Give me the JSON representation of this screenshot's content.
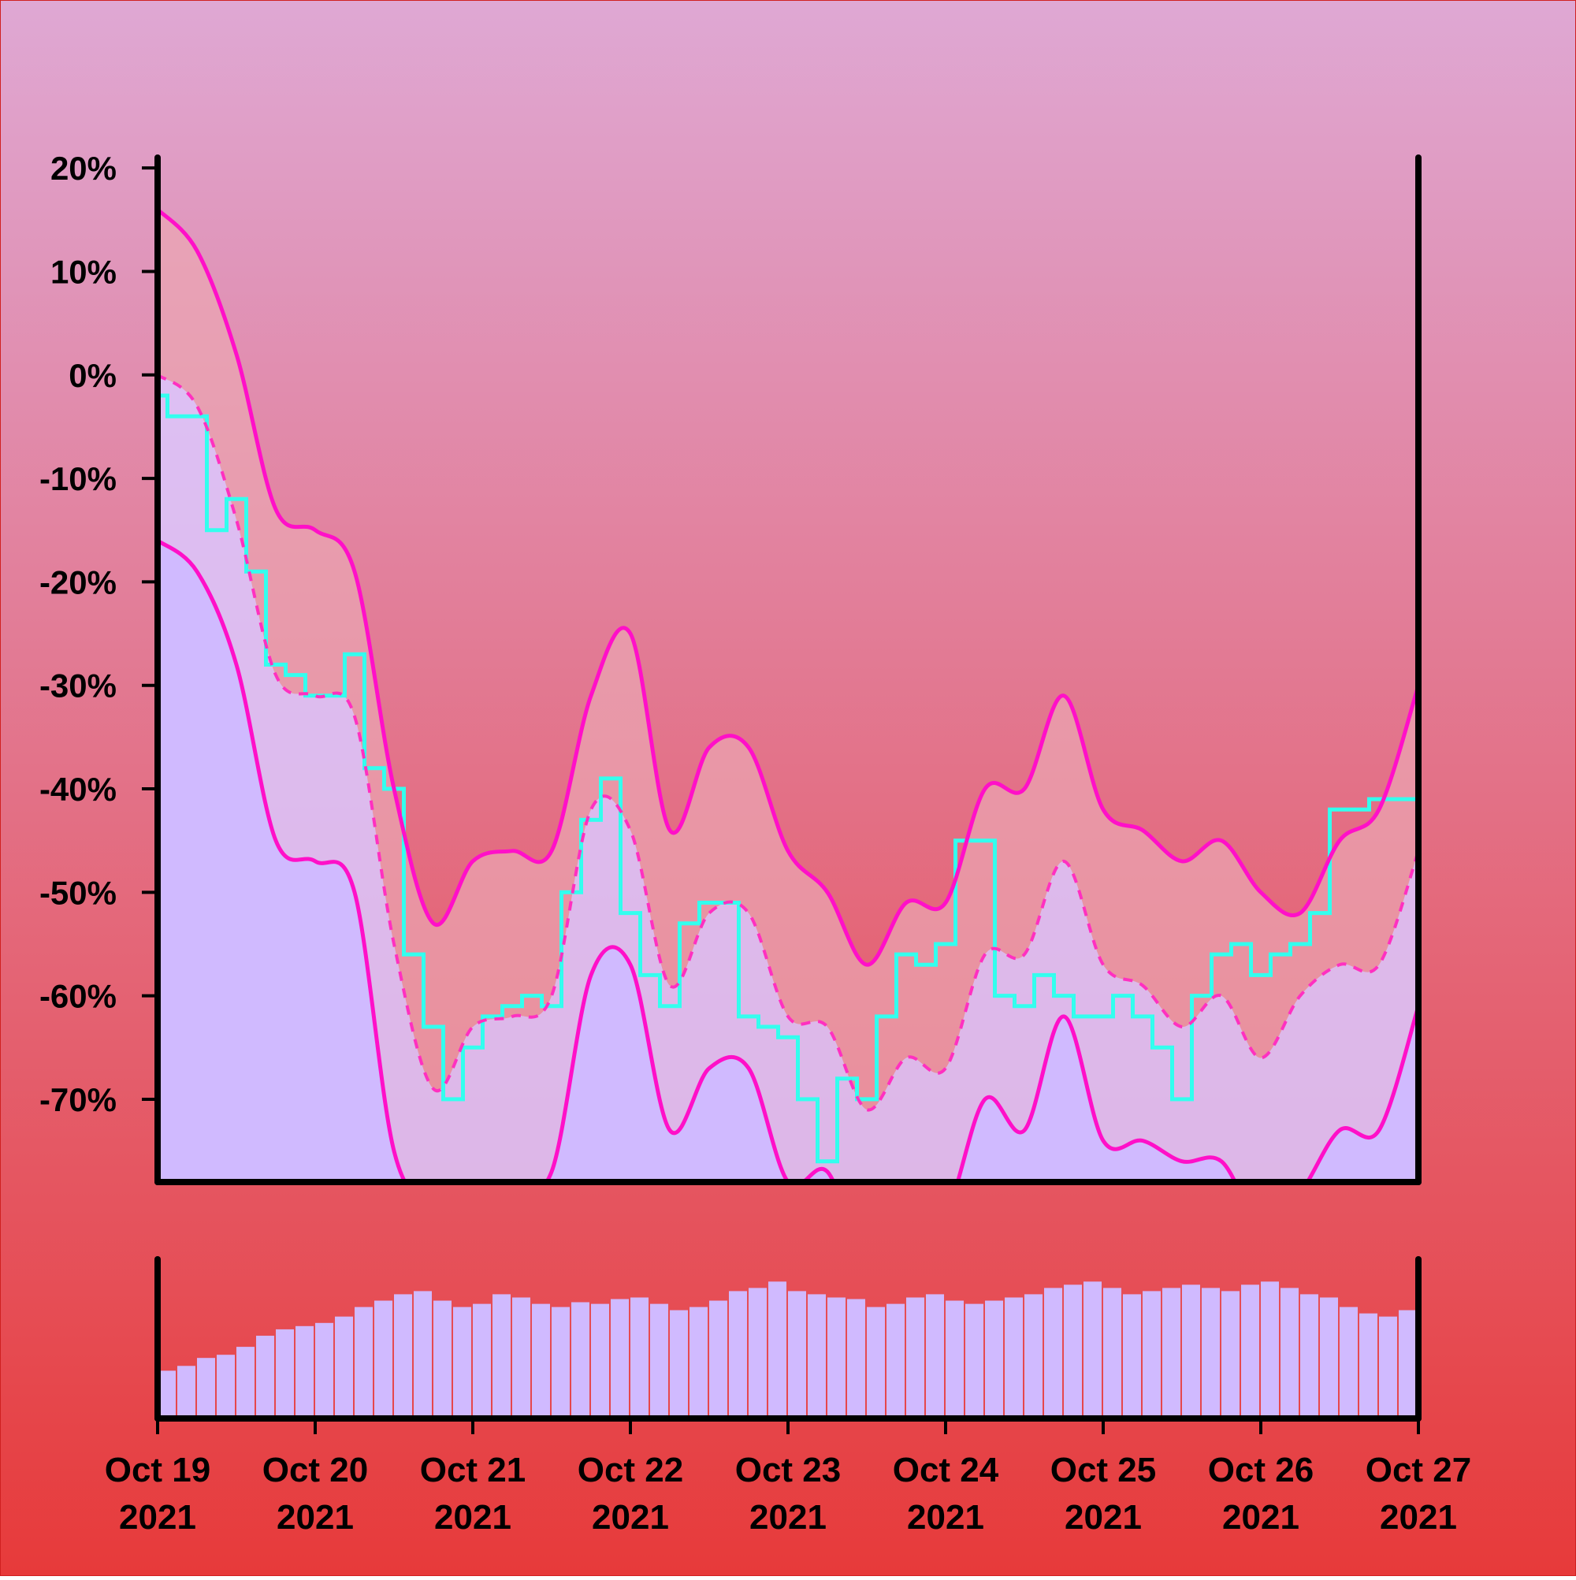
{
  "colors": {
    "bg_top": "#dfa8d4",
    "bg_bottom": "#e73a3a",
    "price_line": "#33ffee",
    "band_line": "#ff10c8",
    "mid_line": "#ff30c0",
    "band_fill_upper": "#eba6b4",
    "band_fill_lower": "#dcc8ff",
    "area_fill": "#d0baff",
    "volume_fill": "#d0baff",
    "axis": "#000000",
    "text": "#000000"
  },
  "chart_data": [
    {
      "type": "line",
      "panel": "price",
      "description_series": [
        "price change",
        "upper band",
        "middle band (dashed)",
        "lower band"
      ],
      "x_start": "2021-10-19",
      "x_end": "2021-10-27",
      "yticks": [
        20,
        10,
        0,
        -10,
        -20,
        -30,
        -40,
        -50,
        -60,
        -70
      ],
      "ytick_labels": [
        "20%",
        "10%",
        "0%",
        "-10%",
        "-20%",
        "-30%",
        "-40%",
        "-50%",
        "-60%",
        "-70%"
      ],
      "ylim": [
        -78,
        21
      ],
      "grid": false,
      "legend": "none",
      "series": [
        {
          "key": "price",
          "style": "stepped",
          "x": [
            "2021-10-19T00:00",
            "2021-10-19T03:00",
            "2021-10-19T06:00",
            "2021-10-19T09:00",
            "2021-10-19T12:00",
            "2021-10-19T15:00",
            "2021-10-19T18:00",
            "2021-10-19T21:00",
            "2021-10-20T00:00",
            "2021-10-20T03:00",
            "2021-10-20T06:00",
            "2021-10-20T09:00",
            "2021-10-20T12:00",
            "2021-10-20T15:00",
            "2021-10-20T18:00",
            "2021-10-20T21:00",
            "2021-10-21T00:00",
            "2021-10-21T03:00",
            "2021-10-21T06:00",
            "2021-10-21T09:00",
            "2021-10-21T12:00",
            "2021-10-21T15:00",
            "2021-10-21T18:00",
            "2021-10-21T21:00",
            "2021-10-22T00:00",
            "2021-10-22T03:00",
            "2021-10-22T06:00",
            "2021-10-22T09:00",
            "2021-10-22T12:00",
            "2021-10-22T15:00",
            "2021-10-22T18:00",
            "2021-10-22T21:00",
            "2021-10-23T00:00",
            "2021-10-23T03:00",
            "2021-10-23T06:00",
            "2021-10-23T09:00",
            "2021-10-23T12:00",
            "2021-10-23T15:00",
            "2021-10-23T18:00",
            "2021-10-23T21:00",
            "2021-10-24T00:00",
            "2021-10-24T03:00",
            "2021-10-24T06:00",
            "2021-10-24T09:00",
            "2021-10-24T12:00",
            "2021-10-24T15:00",
            "2021-10-24T18:00",
            "2021-10-24T21:00",
            "2021-10-25T00:00",
            "2021-10-25T03:00",
            "2021-10-25T06:00",
            "2021-10-25T09:00",
            "2021-10-25T12:00",
            "2021-10-25T15:00",
            "2021-10-25T18:00",
            "2021-10-25T21:00",
            "2021-10-26T00:00",
            "2021-10-26T03:00",
            "2021-10-26T06:00",
            "2021-10-26T09:00",
            "2021-10-26T12:00",
            "2021-10-26T15:00",
            "2021-10-26T18:00",
            "2021-10-26T21:00",
            "2021-10-27T00:00"
          ],
          "values": [
            -2,
            -4,
            -4,
            -15,
            -12,
            -19,
            -28,
            -29,
            -31,
            -31,
            -27,
            -38,
            -40,
            -56,
            -63,
            -70,
            -65,
            -62,
            -61,
            -60,
            -61,
            -50,
            -43,
            -39,
            -52,
            -58,
            -61,
            -53,
            -51,
            -51,
            -62,
            -63,
            -64,
            -70,
            -76,
            -68,
            -70,
            -62,
            -56,
            -57,
            -55,
            -45,
            -45,
            -60,
            -61,
            -58,
            -60,
            -62,
            -62,
            -60,
            -62,
            -65,
            -70,
            -60,
            -56,
            -55,
            -58,
            -56,
            -55,
            -52,
            -42,
            -42,
            -41,
            -41,
            -41
          ]
        },
        {
          "key": "upper_band",
          "x": [
            "2021-10-19T00:00",
            "2021-10-19T06:00",
            "2021-10-19T12:00",
            "2021-10-19T18:00",
            "2021-10-20T00:00",
            "2021-10-20T06:00",
            "2021-10-20T12:00",
            "2021-10-20T18:00",
            "2021-10-21T00:00",
            "2021-10-21T06:00",
            "2021-10-21T12:00",
            "2021-10-21T18:00",
            "2021-10-22T00:00",
            "2021-10-22T06:00",
            "2021-10-22T12:00",
            "2021-10-22T18:00",
            "2021-10-23T00:00",
            "2021-10-23T06:00",
            "2021-10-23T12:00",
            "2021-10-23T18:00",
            "2021-10-24T00:00",
            "2021-10-24T06:00",
            "2021-10-24T12:00",
            "2021-10-24T18:00",
            "2021-10-25T00:00",
            "2021-10-25T06:00",
            "2021-10-25T12:00",
            "2021-10-25T18:00",
            "2021-10-26T00:00",
            "2021-10-26T06:00",
            "2021-10-26T12:00",
            "2021-10-26T18:00",
            "2021-10-27T00:00"
          ],
          "values": [
            16,
            12,
            2,
            -13,
            -15,
            -19,
            -40,
            -53,
            -47,
            -46,
            -46,
            -31,
            -25,
            -44,
            -36,
            -36,
            -46,
            -50,
            -57,
            -51,
            -51,
            -40,
            -40,
            -31,
            -42,
            -44,
            -47,
            -45,
            -50,
            -52,
            -45,
            -42,
            -30
          ]
        },
        {
          "key": "middle_band",
          "style": "dashed",
          "x": [
            "2021-10-19T00:00",
            "2021-10-19T06:00",
            "2021-10-19T12:00",
            "2021-10-19T18:00",
            "2021-10-20T00:00",
            "2021-10-20T06:00",
            "2021-10-20T12:00",
            "2021-10-20T18:00",
            "2021-10-21T00:00",
            "2021-10-21T06:00",
            "2021-10-21T12:00",
            "2021-10-21T18:00",
            "2021-10-22T00:00",
            "2021-10-22T06:00",
            "2021-10-22T12:00",
            "2021-10-22T18:00",
            "2021-10-23T00:00",
            "2021-10-23T06:00",
            "2021-10-23T12:00",
            "2021-10-23T18:00",
            "2021-10-24T00:00",
            "2021-10-24T06:00",
            "2021-10-24T12:00",
            "2021-10-24T18:00",
            "2021-10-25T00:00",
            "2021-10-25T06:00",
            "2021-10-25T12:00",
            "2021-10-25T18:00",
            "2021-10-26T00:00",
            "2021-10-26T06:00",
            "2021-10-26T12:00",
            "2021-10-26T18:00",
            "2021-10-27T00:00"
          ],
          "values": [
            0,
            -3,
            -14,
            -29,
            -31,
            -33,
            -55,
            -69,
            -63,
            -62,
            -60,
            -42,
            -44,
            -59,
            -52,
            -52,
            -62,
            -63,
            -71,
            -66,
            -67,
            -56,
            -56,
            -47,
            -57,
            -59,
            -63,
            -60,
            -66,
            -60,
            -57,
            -57,
            -46
          ]
        },
        {
          "key": "lower_band",
          "x": [
            "2021-10-19T00:00",
            "2021-10-19T06:00",
            "2021-10-19T12:00",
            "2021-10-19T18:00",
            "2021-10-20T00:00",
            "2021-10-20T06:00",
            "2021-10-20T12:00",
            "2021-10-20T18:00",
            "2021-10-21T00:00",
            "2021-10-21T06:00",
            "2021-10-21T12:00",
            "2021-10-21T18:00",
            "2021-10-22T00:00",
            "2021-10-22T06:00",
            "2021-10-22T12:00",
            "2021-10-22T18:00",
            "2021-10-23T00:00",
            "2021-10-23T06:00",
            "2021-10-23T12:00",
            "2021-10-23T18:00",
            "2021-10-24T00:00",
            "2021-10-24T06:00",
            "2021-10-24T12:00",
            "2021-10-24T18:00",
            "2021-10-25T00:00",
            "2021-10-25T06:00",
            "2021-10-25T12:00",
            "2021-10-25T18:00",
            "2021-10-26T00:00",
            "2021-10-26T06:00",
            "2021-10-26T12:00",
            "2021-10-26T18:00",
            "2021-10-27T00:00"
          ],
          "values": [
            -16,
            -19,
            -28,
            -45,
            -47,
            -50,
            -75,
            -80,
            -79,
            -78,
            -77,
            -58,
            -57,
            -73,
            -67,
            -67,
            -78,
            -77,
            -86,
            -81,
            -81,
            -70,
            -73,
            -62,
            -74,
            -74,
            -76,
            -76,
            -82,
            -79,
            -73,
            -73,
            -61
          ]
        }
      ]
    },
    {
      "type": "bar",
      "panel": "volume",
      "x_start": "2021-10-19",
      "x_end": "2021-10-27",
      "xtick_labels": [
        {
          "line1": "Oct 19",
          "line2": "2021"
        },
        {
          "line1": "Oct 20",
          "line2": "2021"
        },
        {
          "line1": "Oct 21",
          "line2": "2021"
        },
        {
          "line1": "Oct 22",
          "line2": "2021"
        },
        {
          "line1": "Oct 23",
          "line2": "2021"
        },
        {
          "line1": "Oct 24",
          "line2": "2021"
        },
        {
          "line1": "Oct 25",
          "line2": "2021"
        },
        {
          "line1": "Oct 26",
          "line2": "2021"
        },
        {
          "line1": "Oct 27",
          "line2": "2021"
        }
      ],
      "y_unit": "relative volume (0-1)",
      "values": [
        0.3,
        0.33,
        0.38,
        0.4,
        0.45,
        0.52,
        0.56,
        0.58,
        0.6,
        0.64,
        0.7,
        0.74,
        0.78,
        0.8,
        0.74,
        0.7,
        0.72,
        0.78,
        0.76,
        0.72,
        0.7,
        0.73,
        0.72,
        0.75,
        0.76,
        0.72,
        0.68,
        0.7,
        0.74,
        0.8,
        0.82,
        0.86,
        0.8,
        0.78,
        0.76,
        0.75,
        0.7,
        0.72,
        0.76,
        0.78,
        0.74,
        0.72,
        0.74,
        0.76,
        0.78,
        0.82,
        0.84,
        0.86,
        0.82,
        0.78,
        0.8,
        0.82,
        0.84,
        0.82,
        0.8,
        0.84,
        0.86,
        0.82,
        0.78,
        0.76,
        0.7,
        0.66,
        0.64,
        0.68
      ]
    }
  ]
}
